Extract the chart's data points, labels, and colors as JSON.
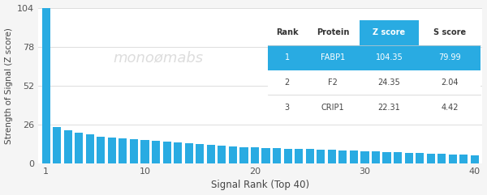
{
  "title": "",
  "xlabel": "Signal Rank (Top 40)",
  "ylabel": "Strength of Signal (Z score)",
  "bar_color": "#29ABE2",
  "background_color": "#f5f5f5",
  "plot_bg_color": "#ffffff",
  "grid_color": "#d8d8d8",
  "ylim": [
    0,
    104
  ],
  "yticks": [
    0,
    26,
    52,
    78,
    104
  ],
  "xlim": [
    0.3,
    40.7
  ],
  "xticks": [
    1,
    10,
    20,
    30,
    40
  ],
  "n_bars": 40,
  "table": {
    "columns": [
      "Rank",
      "Protein",
      "Z score",
      "S score"
    ],
    "rows": [
      [
        "1",
        "FABP1",
        "104.35",
        "79.99"
      ],
      [
        "2",
        "F2",
        "24.35",
        "2.04"
      ],
      [
        "3",
        "CRIP1",
        "22.31",
        "4.42"
      ]
    ],
    "header_bg": "#ffffff",
    "header_zscore_bg": "#29ABE2",
    "highlight_row_bg": "#29ABE2",
    "highlight_text": "#ffffff",
    "normal_text": "#444444",
    "header_text": "#333333",
    "separator_color": "#cccccc"
  },
  "watermark_text": "monoømabs",
  "watermark_color": "#dddddd",
  "bar_values": [
    104.35,
    24.35,
    22.31,
    20.5,
    19.2,
    18.0,
    17.1,
    16.5,
    16.0,
    15.5,
    15.0,
    14.5,
    14.0,
    13.5,
    13.0,
    12.5,
    12.0,
    11.5,
    11.0,
    10.8,
    10.5,
    10.2,
    10.0,
    9.8,
    9.5,
    9.2,
    9.0,
    8.8,
    8.5,
    8.3,
    8.0,
    7.8,
    7.5,
    7.2,
    7.0,
    6.7,
    6.4,
    6.1,
    5.8,
    5.5
  ]
}
